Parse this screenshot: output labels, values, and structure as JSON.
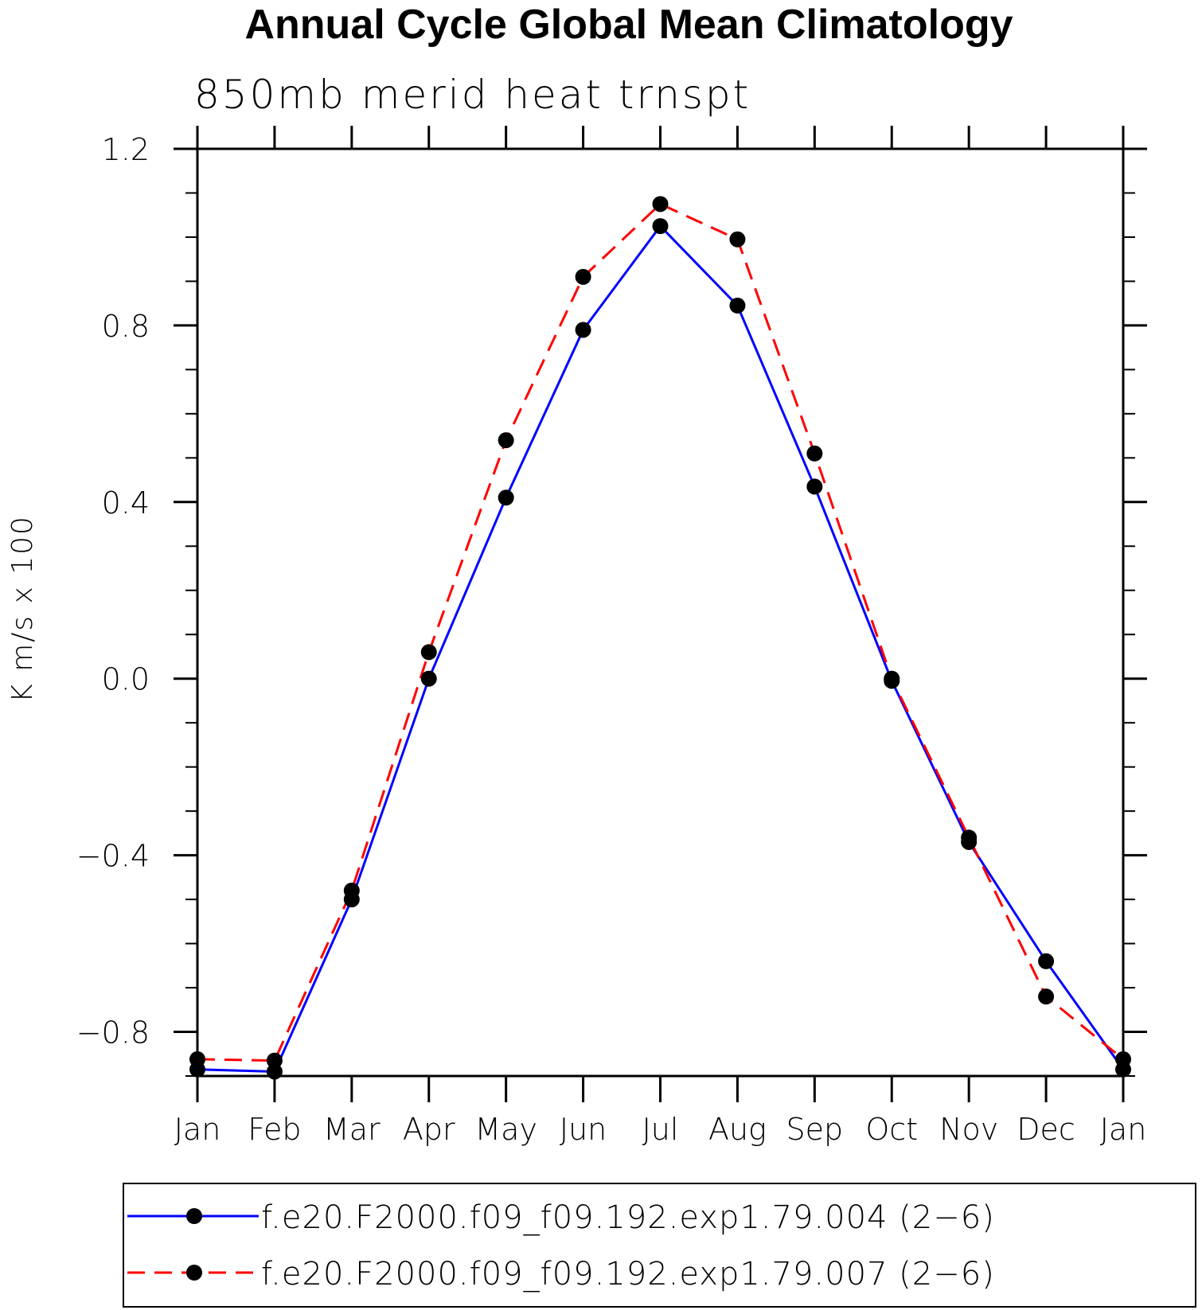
{
  "chart_data": {
    "type": "line",
    "title": "Annual Cycle Global Mean Climatology",
    "subtitle": "850mb merid heat trnspt",
    "xlabel": "",
    "ylabel": "K m/s x 100",
    "categories": [
      "Jan",
      "Feb",
      "Mar",
      "Apr",
      "May",
      "Jun",
      "Jul",
      "Aug",
      "Sep",
      "Oct",
      "Nov",
      "Dec",
      "Jan"
    ],
    "ylim": [
      -0.9,
      1.2
    ],
    "yticks": [
      -0.8,
      -0.4,
      0.0,
      0.4,
      0.8,
      1.2
    ],
    "ytick_labels": [
      "−0.8",
      "−0.4",
      "0.0",
      "0.4",
      "0.8",
      "1.2"
    ],
    "series": [
      {
        "name": "f.e20.F2000.f09_f09.192.exp1.79.004 (2−6)",
        "color": "#0000ff",
        "style": "solid",
        "values": [
          -0.885,
          -0.89,
          -0.5,
          0.0,
          0.41,
          0.79,
          1.025,
          0.845,
          0.435,
          -0.005,
          -0.37,
          -0.64,
          -0.885
        ]
      },
      {
        "name": "f.e20.F2000.f09_f09.192.exp1.79.007 (2−6)",
        "color": "#ff0000",
        "style": "dashed",
        "values": [
          -0.862,
          -0.865,
          -0.48,
          0.06,
          0.54,
          0.91,
          1.075,
          0.995,
          0.51,
          0.0,
          -0.36,
          -0.72,
          -0.862
        ]
      }
    ],
    "legend_position": "bottom",
    "grid": false
  }
}
